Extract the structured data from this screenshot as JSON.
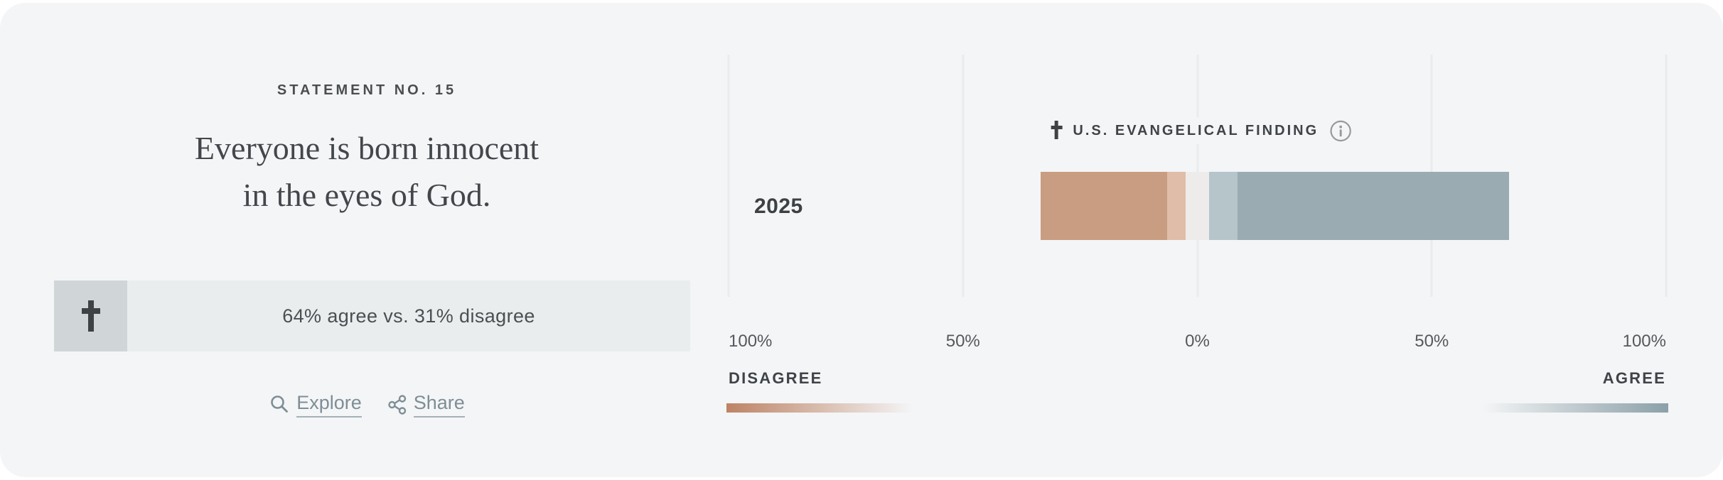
{
  "statement": {
    "eyebrow": "STATEMENT NO. 15",
    "title_line1": "Everyone is born innocent",
    "title_line2": "in the eyes of God.",
    "summary": "64% agree vs. 31% disagree",
    "agree_pct": 64,
    "disagree_pct": 31,
    "summary_icon": "latin-cross"
  },
  "links": {
    "explore": "Explore",
    "share": "Share"
  },
  "chart_data": {
    "type": "diverging_bar",
    "title": "U.S. EVANGELICAL FINDING",
    "title_icon": "latin-cross",
    "info_icon": "info-circle",
    "rows": [
      {
        "year": "2025",
        "segments": [
          {
            "name": "disagree-dark",
            "value": 27,
            "color": "#c99d81"
          },
          {
            "name": "disagree-light",
            "value": 4,
            "color": "#e0bda8"
          },
          {
            "name": "neutral",
            "value": 5,
            "color": "#edecea"
          },
          {
            "name": "agree-light",
            "value": 6,
            "color": "#b5c5ca"
          },
          {
            "name": "agree-dark",
            "value": 58,
            "color": "#9aabb1"
          }
        ]
      }
    ],
    "axis": {
      "range_pct": [
        -100,
        100
      ],
      "ticks": [
        "100%",
        "50%",
        "0%",
        "50%",
        "100%"
      ],
      "left_label": "DISAGREE",
      "right_label": "AGREE",
      "grid": true
    },
    "legend": {
      "disagree_color": "#bd8365",
      "agree_color": "#8ba0a8",
      "fade_to": "#f4f5f6"
    }
  },
  "colors": {
    "card_bg": "#f4f5f6",
    "gridline": "#e9ebec",
    "stat_icon_bg": "#d0d6d7",
    "stat_text_bg": "#e9edee",
    "link": "#7e8e96",
    "text_dark": "#3f4347"
  }
}
